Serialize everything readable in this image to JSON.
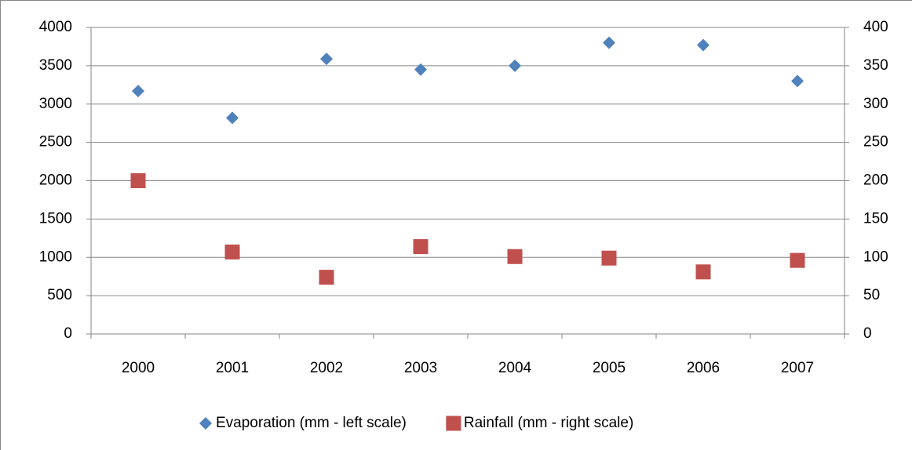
{
  "chart_data": {
    "type": "scatter",
    "categories": [
      "2000",
      "2001",
      "2002",
      "2003",
      "2004",
      "2005",
      "2006",
      "2007"
    ],
    "series": [
      {
        "name": "Evaporation (mm - left scale)",
        "color": "#4f81bd",
        "marker": "diamond",
        "axis": "y",
        "values": [
          3170,
          2820,
          3590,
          3450,
          3500,
          3800,
          3770,
          3300
        ]
      },
      {
        "name": "Rainfall (mm - right scale)",
        "color": "#c0504d",
        "marker": "square",
        "axis": "y2",
        "values": [
          200,
          107,
          74,
          114,
          101,
          99,
          81,
          96
        ]
      }
    ],
    "ylim": [
      0,
      4000
    ],
    "yticks": [
      0,
      500,
      1000,
      1500,
      2000,
      2500,
      3000,
      3500,
      4000
    ],
    "y2lim": [
      0,
      400
    ],
    "y2ticks": [
      0,
      50,
      100,
      150,
      200,
      250,
      300,
      350,
      400
    ],
    "grid": true,
    "legend": "bottom"
  }
}
